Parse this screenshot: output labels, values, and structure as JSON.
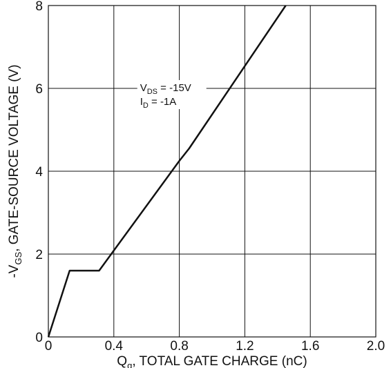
{
  "chart_data": {
    "type": "line",
    "xlabel_main": "Q",
    "xlabel_sub": "g",
    "xlabel_rest": ", TOTAL GATE CHARGE (nC)",
    "ylabel_main": "-V",
    "ylabel_sub": "GS",
    "ylabel_rest": ", GATE-SOURCE VOLTAGE (V)",
    "xlim": [
      0,
      2.0
    ],
    "ylim": [
      0,
      8
    ],
    "x_ticks": [
      "0",
      "0.4",
      "0.8",
      "1.2",
      "1.6",
      "2.0"
    ],
    "y_ticks": [
      "0",
      "2",
      "4",
      "6",
      "8"
    ],
    "grid": true,
    "series": [
      {
        "x": [
          0,
          0.13,
          0.31,
          0.8,
          0.86,
          1.45
        ],
        "y": [
          0,
          1.6,
          1.6,
          4.25,
          4.55,
          8.0
        ]
      }
    ],
    "annotation": {
      "line1_main": "V",
      "line1_sub": "DS",
      "line1_rest": " = -15V",
      "line2_main": "I",
      "line2_sub": "D",
      "line2_rest": " = -1A"
    },
    "colors": {
      "line": "#111111",
      "grid": "#111111",
      "background": "#ffffff"
    }
  }
}
